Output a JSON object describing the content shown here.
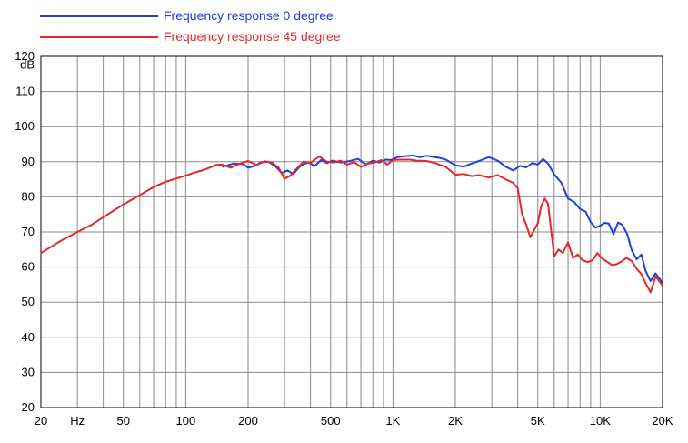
{
  "chart_data": {
    "type": "line",
    "title": "",
    "xlabel": "",
    "ylabel": "dB",
    "x_scale": "log",
    "xlim": [
      20,
      20000
    ],
    "ylim": [
      20,
      120
    ],
    "grid": true,
    "legend_position": "top-left",
    "x_tick_labels": [
      "20",
      "Hz",
      "50",
      "100",
      "200",
      "500",
      "1K",
      "2K",
      "5K",
      "10K",
      "20K"
    ],
    "y_tick_labels": [
      "20",
      "30",
      "40",
      "50",
      "60",
      "70",
      "80",
      "90",
      "100",
      "110",
      "120"
    ],
    "y_unit_label": "dB",
    "series": [
      {
        "name": "Frequency response 0 degree",
        "color": "#1f3fe0",
        "x": [
          150,
          170,
          190,
          200,
          215,
          230,
          250,
          270,
          290,
          310,
          330,
          360,
          390,
          420,
          450,
          480,
          510,
          560,
          620,
          680,
          740,
          800,
          860,
          920,
          980,
          1050,
          1150,
          1250,
          1350,
          1450,
          1550,
          1650,
          1800,
          2000,
          2200,
          2400,
          2600,
          2900,
          3200,
          3500,
          3800,
          4100,
          4400,
          4700,
          5000,
          5300,
          5600,
          6000,
          6500,
          7000,
          7500,
          8000,
          8500,
          9000,
          9500,
          10000,
          10500,
          11000,
          11600,
          12200,
          12800,
          13500,
          14200,
          15000,
          15800,
          16600,
          17500,
          18500,
          19500,
          20000
        ],
        "y": [
          88.5,
          89.5,
          89.3,
          88.3,
          88.8,
          89.8,
          90.0,
          88.8,
          86.8,
          87.5,
          86.5,
          89.0,
          89.8,
          88.8,
          90.5,
          89.6,
          90.3,
          89.8,
          90.2,
          90.8,
          89.2,
          90.3,
          89.8,
          90.6,
          90.5,
          91.3,
          91.6,
          91.8,
          91.3,
          91.7,
          91.4,
          91.2,
          90.6,
          89.0,
          88.6,
          89.5,
          90.2,
          91.3,
          90.3,
          88.6,
          87.5,
          88.8,
          88.4,
          89.6,
          89.2,
          90.8,
          89.5,
          86.4,
          84.0,
          79.5,
          78.5,
          76.5,
          75.8,
          72.8,
          71.2,
          71.8,
          72.6,
          72.4,
          69.4,
          72.7,
          72.0,
          69.4,
          64.8,
          62.2,
          63.6,
          58.8,
          56.0,
          58.2,
          56.4,
          55.2
        ]
      },
      {
        "name": "Frequency response 45 degree",
        "color": "#e8262a",
        "x": [
          20,
          25,
          30,
          35,
          40,
          50,
          60,
          70,
          80,
          90,
          100,
          110,
          120,
          130,
          140,
          150,
          165,
          180,
          200,
          220,
          240,
          260,
          280,
          300,
          320,
          340,
          370,
          400,
          440,
          480,
          520,
          560,
          600,
          650,
          700,
          760,
          820,
          880,
          940,
          1000,
          1100,
          1200,
          1300,
          1450,
          1600,
          1800,
          2000,
          2200,
          2400,
          2600,
          2900,
          3200,
          3500,
          3800,
          4000,
          4200,
          4400,
          4600,
          4800,
          5000,
          5200,
          5400,
          5600,
          5800,
          6000,
          6300,
          6600,
          7000,
          7400,
          7800,
          8200,
          8700,
          9200,
          9700,
          10200,
          10800,
          11400,
          12000,
          12700,
          13400,
          14200,
          15000,
          15800,
          16600,
          17500,
          18500,
          19500,
          20000
        ],
        "y": [
          64.0,
          67.5,
          70.0,
          72.0,
          74.2,
          77.8,
          80.5,
          82.8,
          84.3,
          85.2,
          86.1,
          86.9,
          87.5,
          88.3,
          89.1,
          89.2,
          88.3,
          89.3,
          90.2,
          89.1,
          90.1,
          89.8,
          88.4,
          85.2,
          86.0,
          87.8,
          90.0,
          89.7,
          91.5,
          90.0,
          89.8,
          90.3,
          89.2,
          89.9,
          88.5,
          89.5,
          89.8,
          90.5,
          89.2,
          90.5,
          90.6,
          90.6,
          90.3,
          90.2,
          89.6,
          88.5,
          86.3,
          86.5,
          85.9,
          86.2,
          85.5,
          86.2,
          85.0,
          84.0,
          82.5,
          75.0,
          72.0,
          68.5,
          70.5,
          72.5,
          77.5,
          79.5,
          78.0,
          70.5,
          63.0,
          65.0,
          64.0,
          67.0,
          62.6,
          63.6,
          62.0,
          61.4,
          62.0,
          64.0,
          62.5,
          61.5,
          60.6,
          60.8,
          61.6,
          62.6,
          61.7,
          59.5,
          58.0,
          55.3,
          52.8,
          57.3,
          55.6,
          54.7
        ]
      }
    ]
  }
}
